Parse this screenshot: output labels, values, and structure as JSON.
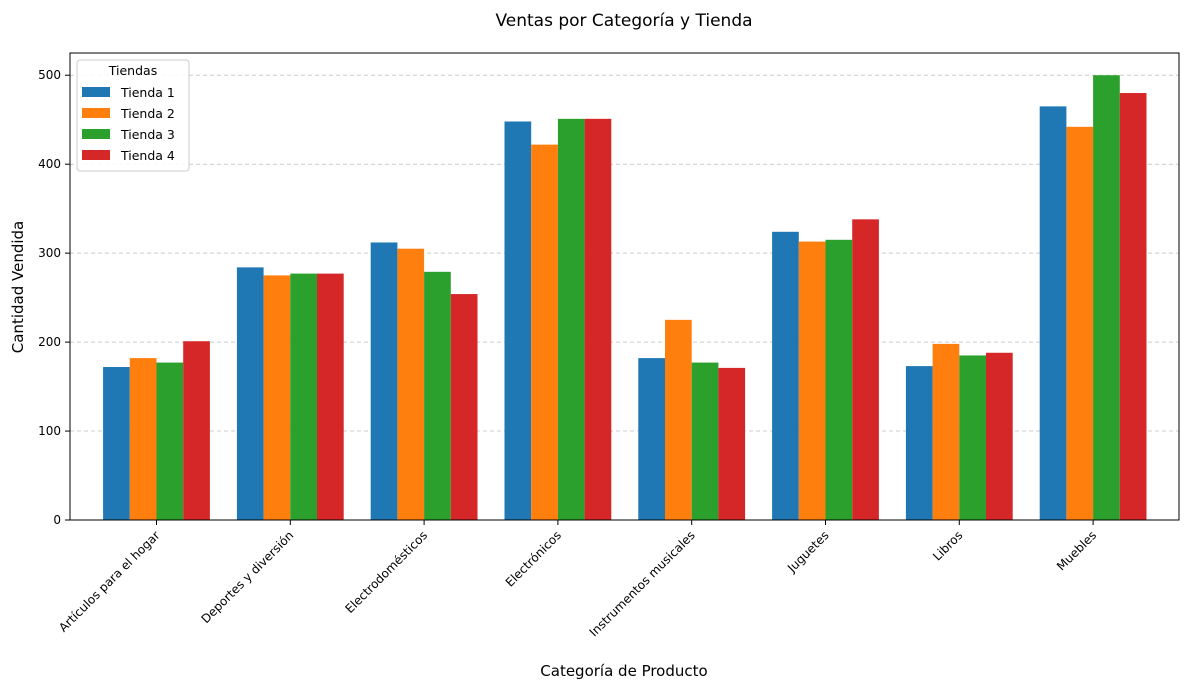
{
  "chart_data": {
    "type": "bar",
    "title": "Ventas por Categoría y Tienda",
    "xlabel": "Categoría de Producto",
    "ylabel": "Cantidad Vendida",
    "ylim": [
      0,
      525
    ],
    "yticks": [
      0,
      100,
      200,
      300,
      400,
      500
    ],
    "grid": "y-dashed",
    "legend": {
      "title": "Tiendas",
      "placement": "top-left"
    },
    "categories": [
      "Artículos para el hogar",
      "Deportes y diversión",
      "Electrodomésticos",
      "Electrónicos",
      "Instrumentos musicales",
      "Juguetes",
      "Libros",
      "Muebles"
    ],
    "series": [
      {
        "name": "Tienda 1",
        "color": "#1f77b4",
        "values": [
          172,
          284,
          312,
          448,
          182,
          324,
          173,
          465
        ]
      },
      {
        "name": "Tienda 2",
        "color": "#ff7f0e",
        "values": [
          182,
          275,
          305,
          422,
          225,
          313,
          198,
          442
        ]
      },
      {
        "name": "Tienda 3",
        "color": "#2ca02c",
        "values": [
          177,
          277,
          279,
          451,
          177,
          315,
          185,
          500
        ]
      },
      {
        "name": "Tienda 4",
        "color": "#d62728",
        "values": [
          201,
          277,
          254,
          451,
          171,
          338,
          188,
          480
        ]
      }
    ]
  }
}
